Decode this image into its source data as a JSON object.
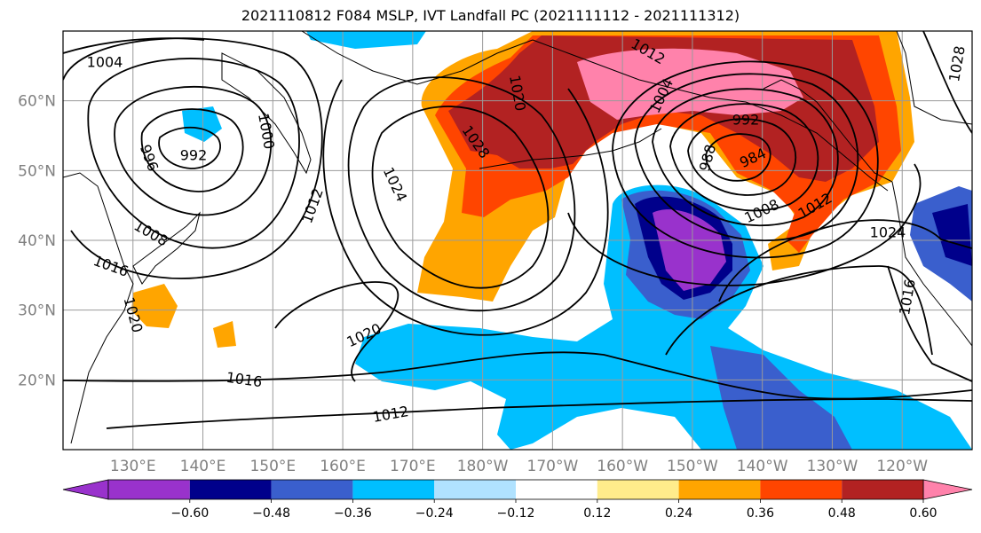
{
  "title": "2021110812 F084 MSLP, IVT Landfall PC (2021111112 - 2021111312)",
  "map": {
    "lat_labels": [
      "60°N",
      "50°N",
      "40°N",
      "30°N",
      "20°N"
    ],
    "lat_values": [
      60,
      50,
      40,
      30,
      20
    ],
    "lon_labels": [
      "130°E",
      "140°E",
      "150°E",
      "160°E",
      "170°E",
      "180°W",
      "170°W",
      "160°W",
      "150°W",
      "140°W",
      "130°W",
      "120°W"
    ],
    "lon_values": [
      130,
      140,
      150,
      160,
      170,
      180,
      190,
      200,
      210,
      220,
      230,
      240
    ],
    "extent": {
      "lon": [
        120,
        250
      ],
      "lat": [
        10,
        70
      ]
    }
  },
  "contour_labels": [
    "1004",
    "992",
    "996",
    "1000",
    "1012",
    "1008",
    "1016",
    "1020",
    "1024",
    "1028",
    "1020",
    "1012",
    "1004",
    "992",
    "988",
    "984",
    "1008",
    "1012",
    "1024",
    "1016",
    "1028",
    "1020",
    "1016",
    "1012"
  ],
  "colorbar": {
    "colors": [
      "#9932cc",
      "#00008b",
      "#3a5fcd",
      "#00bfff",
      "#b0e2ff",
      "#ffffff",
      "#ffec8b",
      "#ffa500",
      "#ff4500",
      "#b22222",
      "#ff82ab"
    ],
    "tick_labels": [
      "−0.60",
      "−0.48",
      "−0.36",
      "−0.24",
      "−0.12",
      "0.12",
      "0.24",
      "0.36",
      "0.48",
      "0.60"
    ],
    "tick_values": [
      -0.6,
      -0.48,
      -0.36,
      -0.24,
      -0.12,
      0.12,
      0.24,
      0.36,
      0.48,
      0.6
    ]
  }
}
